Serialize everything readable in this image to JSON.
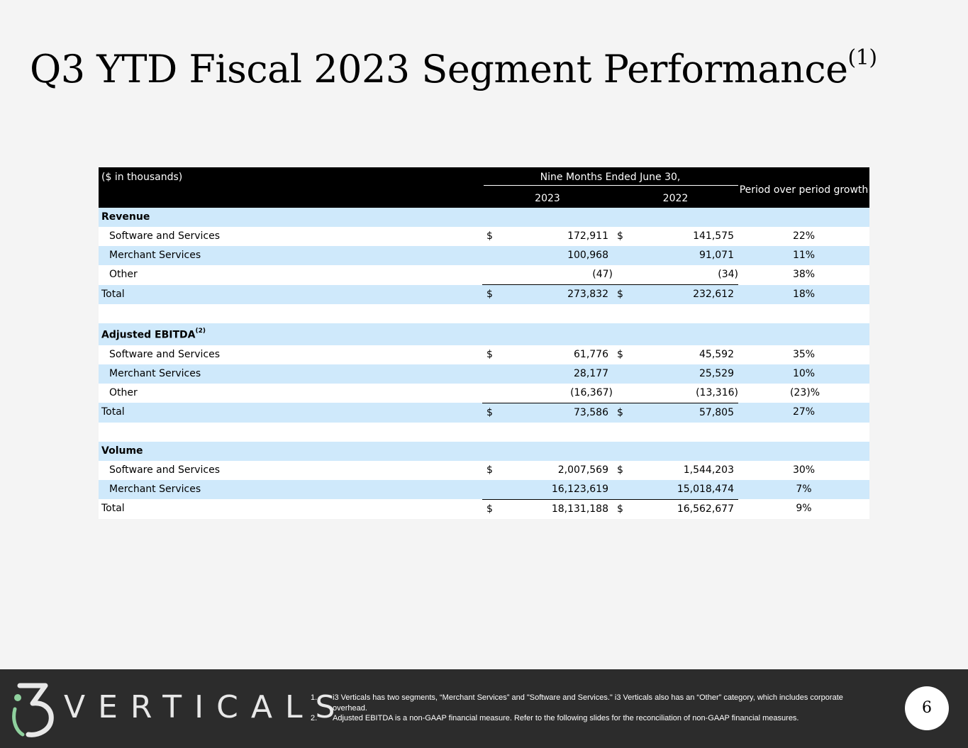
{
  "page": {
    "title": "Q3 YTD Fiscal 2023 Segment Performance",
    "title_note": "(1)",
    "page_number": "6"
  },
  "table": {
    "units_label": "($ in thousands)",
    "period_label": "Nine Months Ended June 30,",
    "growth_label": "Period over period growth",
    "year_a": "2023",
    "year_b": "2022",
    "sections": [
      {
        "heading": "Revenue",
        "heading_note": "",
        "rows": [
          {
            "label": "Software and Services",
            "cur_a": "$",
            "a": "172,911",
            "cur_b": "$",
            "b": "141,575",
            "growth": "22%"
          },
          {
            "label": "Merchant Services",
            "cur_a": "",
            "a": "100,968",
            "cur_b": "",
            "b": "91,071",
            "growth": "11%"
          },
          {
            "label": "Other",
            "cur_a": "",
            "a": "(47)",
            "cur_b": "",
            "b": "(34)",
            "growth": "38%"
          },
          {
            "label": "Total",
            "cur_a": "$",
            "a": "273,832",
            "cur_b": "$",
            "b": "232,612",
            "growth": "18%"
          }
        ]
      },
      {
        "heading": "Adjusted EBITDA",
        "heading_note": "(2)",
        "rows": [
          {
            "label": "Software and Services",
            "cur_a": "$",
            "a": "61,776",
            "cur_b": "$",
            "b": "45,592",
            "growth": "35%"
          },
          {
            "label": "Merchant Services",
            "cur_a": "",
            "a": "28,177",
            "cur_b": "",
            "b": "25,529",
            "growth": "10%"
          },
          {
            "label": "Other",
            "cur_a": "",
            "a": "(16,367)",
            "cur_b": "",
            "b": "(13,316)",
            "growth": "(23)%"
          },
          {
            "label": "Total",
            "cur_a": "$",
            "a": "73,586",
            "cur_b": "$",
            "b": "57,805",
            "growth": "27%"
          }
        ]
      },
      {
        "heading": "Volume",
        "heading_note": "",
        "rows": [
          {
            "label": "Software and Services",
            "cur_a": "$",
            "a": "2,007,569",
            "cur_b": "$",
            "b": "1,544,203",
            "growth": "30%"
          },
          {
            "label": "Merchant Services",
            "cur_a": "",
            "a": "16,123,619",
            "cur_b": "",
            "b": "15,018,474",
            "growth": "7%"
          },
          {
            "label": "Total",
            "cur_a": "$",
            "a": "18,131,188",
            "cur_b": "$",
            "b": "16,562,677",
            "growth": "9%"
          }
        ]
      }
    ]
  },
  "footer": {
    "logo_text": "VERTICALS",
    "notes": [
      {
        "num": "1.",
        "text": "i3 Verticals has two segments, “Merchant Services” and \"Software and Services.\" i3 Verticals also has an “Other” category, which includes corporate overhead."
      },
      {
        "num": "2.",
        "text": "Adjusted EBITDA is a non-GAAP financial measure. Refer to the following slides for the reconciliation of non-GAAP financial measures."
      }
    ],
    "colors": {
      "background": "#2c2c2c",
      "logo_accent": "#8fd19e",
      "logo_text": "#e8e8e8"
    }
  },
  "colors": {
    "row_blue": "#cfe9fb",
    "row_white": "#ffffff",
    "header_bg": "#000000",
    "page_bg": "#f4f4f4"
  }
}
